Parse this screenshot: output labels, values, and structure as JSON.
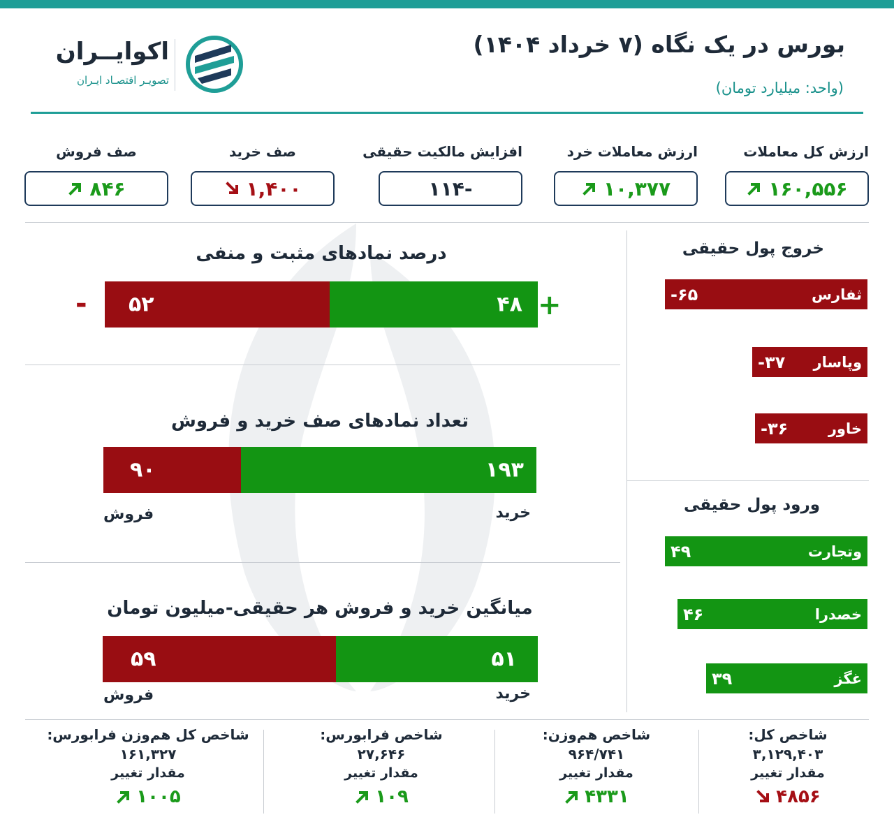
{
  "header": {
    "title": "بورس در یک نگاه (۷ خرداد ۱۴۰۴)",
    "unit": "(واحد: میلیارد تومان)",
    "logo_name": "اکوایــران",
    "logo_tagline": "تصویـر اقتصـاد ایـران"
  },
  "colors": {
    "accent": "#1f9e97",
    "positive": "#139513",
    "negative": "#990d12"
  },
  "kpis": [
    {
      "label": "ارزش کل معاملات",
      "value": "۱۶۰,۵۵۶",
      "trend": "up-arrow-icon"
    },
    {
      "label": "ارزش معاملات خرد",
      "value": "۱۰,۳۷۷",
      "trend": "up-arrow-icon"
    },
    {
      "label": "افزایش مالکیت حقیقی",
      "value": "-۱۱۴",
      "trend": "none"
    },
    {
      "label": "صف خرید",
      "value": "۱,۴۰۰",
      "trend": "down-arrow-icon"
    },
    {
      "label": "صف فروش",
      "value": "۸۴۶",
      "trend": "up-arrow-icon"
    }
  ],
  "sections": {
    "pos_neg": {
      "title": "درصد نمادهای مثبت و منفی",
      "positive_value": "۴۸",
      "negative_value": "۵۲",
      "positive_share": 48,
      "negative_share": 52,
      "plus_sign": "+",
      "minus_sign": "-"
    },
    "queues": {
      "title": "تعداد نمادهای صف خرید و فروش",
      "buy_value": "۱۹۳",
      "sell_value": "۹۰",
      "buy_count": 193,
      "sell_count": 90,
      "buy_label": "خرید",
      "sell_label": "فروش"
    },
    "avg_trade": {
      "title": "میانگین خرید و فروش هر حقیقی-میلیون تومان",
      "buy_value": "۵۱",
      "sell_value": "۵۹",
      "buy_amount": 51,
      "sell_amount": 59,
      "buy_label": "خرید",
      "sell_label": "فروش"
    }
  },
  "outflow": {
    "title": "خروج پول حقیقی",
    "items": [
      {
        "name": "ثفارس",
        "value": "-۶۵",
        "amount": 65
      },
      {
        "name": "وپاسار",
        "value": "-۳۷",
        "amount": 37
      },
      {
        "name": "خاور",
        "value": "-۳۶",
        "amount": 36
      }
    ]
  },
  "inflow": {
    "title": "ورود پول حقیقی",
    "items": [
      {
        "name": "وتجارت",
        "value": "۴۹",
        "amount": 49
      },
      {
        "name": "خصدرا",
        "value": "۴۶",
        "amount": 46
      },
      {
        "name": "غگز",
        "value": "۳۹",
        "amount": 39
      }
    ]
  },
  "indices": [
    {
      "title": "شاخص کل:",
      "value": "۳,۱۲۹,۴۰۳",
      "change_label": "مقدار تغییر",
      "change": "۴۸۵۶",
      "trend": "down"
    },
    {
      "title": "شاخص هم‌وزن:",
      "value": "۹۶۴/۷۴۱",
      "change_label": "مقدار تغییر",
      "change": "۴۳۳۱",
      "trend": "up"
    },
    {
      "title": "شاخص فرابورس:",
      "value": "۲۷,۶۴۶",
      "change_label": "مقدار تغییر",
      "change": "۱۰۹",
      "trend": "up"
    },
    {
      "title": "شاخص کل هم‌وزن فرابورس:",
      "value": "۱۶۱,۳۲۷",
      "change_label": "مقدار تغییر",
      "change": "۱۰۰۵",
      "trend": "up"
    }
  ]
}
